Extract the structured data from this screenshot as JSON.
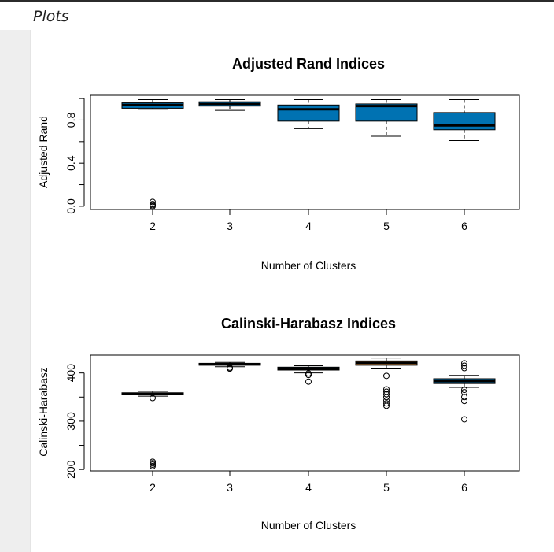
{
  "section": {
    "title": "Plots"
  },
  "colors": {
    "box_fill": "#0072B2",
    "box_fill_alt": "#8B5A2B",
    "frame": "#000000"
  },
  "chart_data": [
    {
      "type": "box",
      "title": "Adjusted Rand Indices",
      "xlabel": "Number of Clusters",
      "ylabel": "Adjusted Rand",
      "categories": [
        "2",
        "3",
        "4",
        "5",
        "6"
      ],
      "ylim": [
        -0.03,
        1.03
      ],
      "yticks": [
        0.0,
        0.2,
        0.4,
        0.6,
        0.8,
        1.0
      ],
      "ytick_labels": [
        "0.0",
        "",
        "0.4",
        "",
        "0.8",
        ""
      ],
      "boxes": [
        {
          "label": "2",
          "whisker_low": 0.9,
          "q1": 0.91,
          "median": 0.94,
          "q3": 0.96,
          "whisker_high": 0.99,
          "outliers": [
            0.0,
            0.01,
            0.02,
            0.04
          ],
          "fill": "#0072B2"
        },
        {
          "label": "3",
          "whisker_low": 0.89,
          "q1": 0.93,
          "median": 0.95,
          "q3": 0.97,
          "whisker_high": 0.99,
          "outliers": [],
          "fill": "#0072B2"
        },
        {
          "label": "4",
          "whisker_low": 0.72,
          "q1": 0.79,
          "median": 0.9,
          "q3": 0.94,
          "whisker_high": 0.99,
          "outliers": [],
          "fill": "#0072B2"
        },
        {
          "label": "5",
          "whisker_low": 0.65,
          "q1": 0.79,
          "median": 0.93,
          "q3": 0.95,
          "whisker_high": 0.99,
          "outliers": [],
          "fill": "#0072B2"
        },
        {
          "label": "6",
          "whisker_low": 0.61,
          "q1": 0.71,
          "median": 0.75,
          "q3": 0.87,
          "whisker_high": 0.99,
          "outliers": [],
          "fill": "#0072B2"
        }
      ]
    },
    {
      "type": "box",
      "title": "Calinski-Harabasz Indices",
      "xlabel": "Number of Clusters",
      "ylabel": "Calinski-Harabasz",
      "categories": [
        "2",
        "3",
        "4",
        "5",
        "6"
      ],
      "ylim": [
        197,
        437
      ],
      "yticks": [
        200,
        250,
        300,
        350,
        400
      ],
      "ytick_labels": [
        "200",
        "",
        "300",
        "",
        "400"
      ],
      "boxes": [
        {
          "label": "2",
          "whisker_low": 352,
          "q1": 355,
          "median": 357,
          "q3": 359,
          "whisker_high": 362,
          "outliers": [
            348,
            207,
            210,
            213,
            216
          ],
          "fill": "#0072B2"
        },
        {
          "label": "3",
          "whisker_low": 413,
          "q1": 416,
          "median": 418,
          "q3": 420,
          "whisker_high": 422,
          "outliers": [
            409,
            411
          ],
          "fill": "#0072B2"
        },
        {
          "label": "4",
          "whisker_low": 400,
          "q1": 406,
          "median": 409,
          "q3": 412,
          "whisker_high": 415,
          "outliers": [
            396,
            399,
            382
          ],
          "fill": "#0072B2"
        },
        {
          "label": "5",
          "whisker_low": 410,
          "q1": 416,
          "median": 421,
          "q3": 425,
          "whisker_high": 431,
          "outliers": [
            394,
            366,
            361,
            356,
            350,
            343,
            337,
            332
          ],
          "fill": "#8B5A2B"
        },
        {
          "label": "6",
          "whisker_low": 370,
          "q1": 378,
          "median": 383,
          "q3": 388,
          "whisker_high": 395,
          "outliers": [
            420,
            415,
            410,
            365,
            360,
            350,
            342,
            304
          ],
          "fill": "#0072B2"
        }
      ]
    }
  ]
}
